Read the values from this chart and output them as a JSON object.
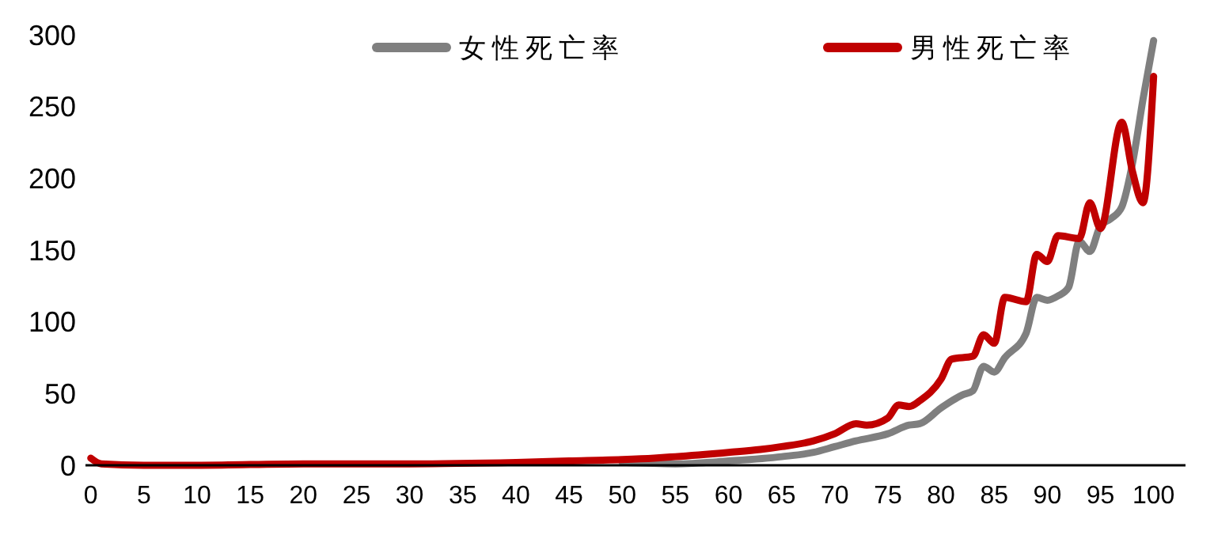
{
  "chart_data": {
    "type": "line",
    "xlim": [
      -0.5,
      103
    ],
    "xticks": [
      0,
      5,
      10,
      15,
      20,
      25,
      30,
      35,
      40,
      45,
      50,
      55,
      60,
      65,
      70,
      75,
      80,
      85,
      90,
      95,
      100
    ],
    "ylim": [
      0,
      300
    ],
    "yticks": [
      0,
      50,
      100,
      150,
      200,
      250,
      300
    ],
    "grid": false,
    "legend": "top",
    "marker": "none",
    "line_style": "solid",
    "series": [
      {
        "name": "女性死亡率",
        "color": "#7f7f7f",
        "x": [
          50,
          55,
          60,
          65,
          68,
          70,
          72,
          75,
          77,
          78,
          80,
          82,
          83,
          84,
          85,
          86,
          88,
          89,
          90,
          91,
          92,
          93,
          94,
          95,
          96,
          97,
          98,
          99,
          100
        ],
        "values": [
          2,
          1,
          3,
          6,
          9,
          13,
          17,
          22,
          28,
          29,
          40,
          49,
          52,
          69,
          65,
          75,
          92,
          117,
          115,
          118,
          124,
          156,
          149,
          167,
          172,
          180,
          210,
          255,
          296
        ]
      },
      {
        "name": "男性死亡率",
        "color": "#c00000",
        "x": [
          0,
          1,
          5,
          10,
          20,
          30,
          40,
          45,
          50,
          53,
          55,
          60,
          63,
          65,
          68,
          70,
          72,
          73,
          75,
          76,
          77,
          78,
          80,
          81,
          83,
          84,
          85,
          86,
          88,
          89,
          90,
          91,
          93,
          94,
          95,
          97,
          98,
          99,
          100
        ],
        "values": [
          5,
          1,
          0,
          0,
          1,
          1,
          2,
          3,
          4,
          5,
          6,
          9,
          11,
          13,
          17,
          22,
          29,
          28,
          33,
          42,
          41,
          45,
          60,
          74,
          76,
          91,
          85,
          117,
          114,
          147,
          142,
          160,
          158,
          183,
          165,
          239,
          205,
          183,
          271
        ]
      }
    ]
  }
}
